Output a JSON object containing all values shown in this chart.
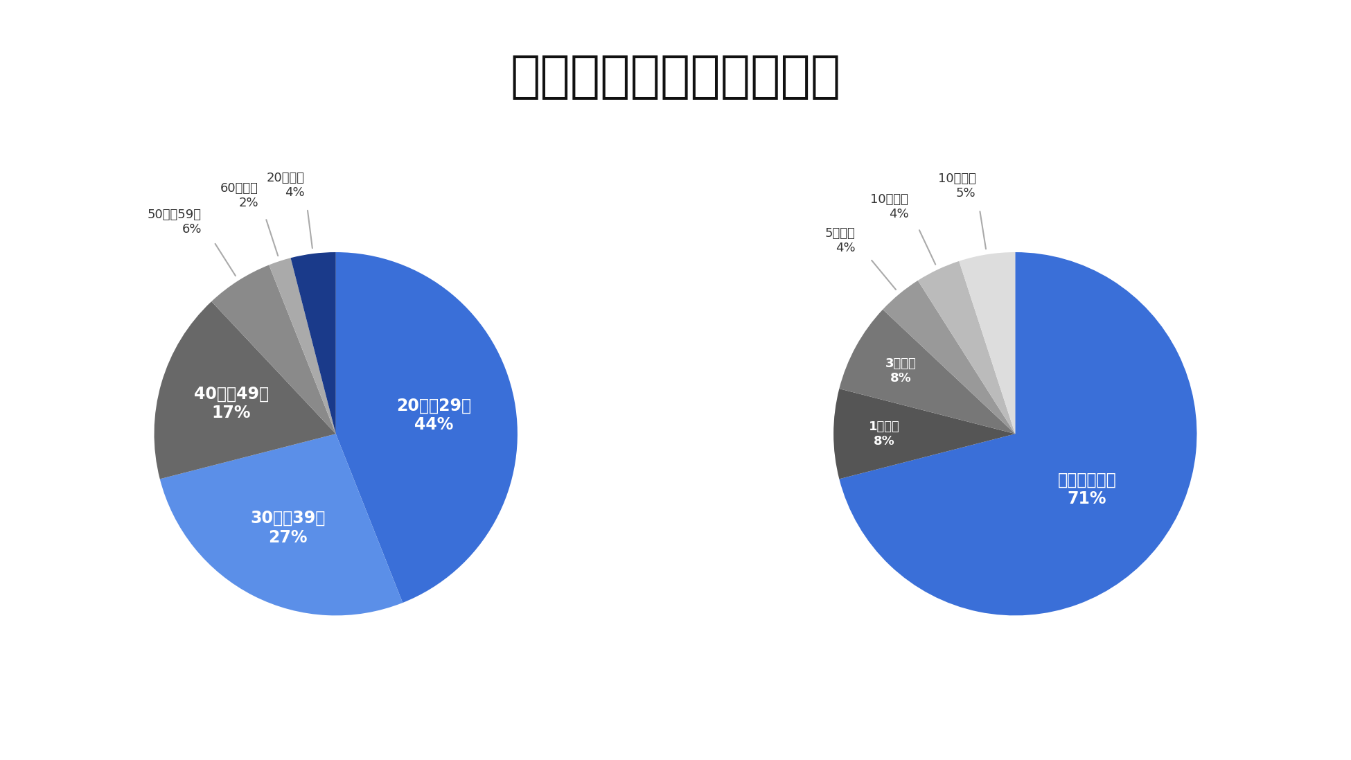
{
  "title": "口座開設ユーザーの分布",
  "title_fontsize": 52,
  "background_color": "#ffffff",
  "chart1": {
    "labels": [
      "20歳～29歳",
      "30歳～39歳",
      "40歳～49歳",
      "50歳～59歳",
      "60歳以上",
      "20代未満"
    ],
    "values": [
      44,
      27,
      17,
      6,
      2,
      4
    ],
    "colors": [
      "#3a6fd8",
      "#5b8fe8",
      "#686868",
      "#8a8a8a",
      "#aaaaaa",
      "#1a3a8a"
    ],
    "inner_labels": [
      "20歳～29歳\n44%",
      "30歳～39歳\n27%",
      "40歳～49歳\n17%",
      "",
      "",
      ""
    ],
    "outer_labels": [
      "",
      "",
      "",
      "50歳～59歳\n6%",
      "60歳以上\n2%",
      "20代未満\n4%"
    ],
    "startangle": 90
  },
  "chart2": {
    "labels": [
      "投資経験なし",
      "1年未満",
      "3年未満",
      "5年未満",
      "10年未満",
      "10年以上"
    ],
    "values": [
      71,
      8,
      8,
      4,
      4,
      5
    ],
    "colors": [
      "#3a6fd8",
      "#555555",
      "#777777",
      "#999999",
      "#bbbbbb",
      "#dddddd"
    ],
    "inner_labels": [
      "投資経験なし\n71%",
      "1年未満\n8%",
      "3年未満\n8%",
      "",
      "",
      ""
    ],
    "outer_labels": [
      "",
      "",
      "",
      "5年未満\n4%",
      "10年未満\n4%",
      "10年以上\n5%"
    ],
    "startangle": 90
  }
}
